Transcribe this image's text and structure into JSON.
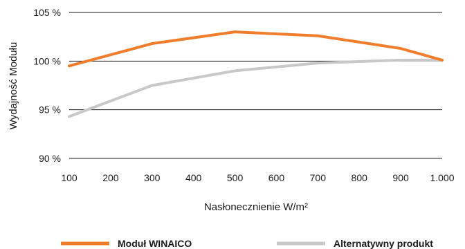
{
  "chart_data": {
    "type": "line",
    "xlabel": "Nasłonecznienie W/m²",
    "ylabel": "Wydajność Modułu",
    "x_ticks": [
      "100",
      "200",
      "300",
      "400",
      "500",
      "600",
      "700",
      "800",
      "900",
      "1.000"
    ],
    "y_ticks": [
      "90 %",
      "95 %",
      "100 %",
      "105 %"
    ],
    "xlim": [
      100,
      1000
    ],
    "ylim": [
      90,
      105
    ],
    "grid": "horizontal",
    "legend_position": "bottom",
    "series": [
      {
        "name": "Moduł WINAICO",
        "color": "#ef7d2c",
        "x": [
          100,
          300,
          500,
          700,
          900,
          1000
        ],
        "y": [
          99.5,
          101.8,
          103.0,
          102.6,
          101.3,
          100.1
        ]
      },
      {
        "name": "Alternatywny produkt",
        "color": "#c8c8c8",
        "x": [
          100,
          300,
          500,
          700,
          900,
          1000
        ],
        "y": [
          94.3,
          97.5,
          99.0,
          99.8,
          100.1,
          100.1
        ]
      }
    ]
  }
}
